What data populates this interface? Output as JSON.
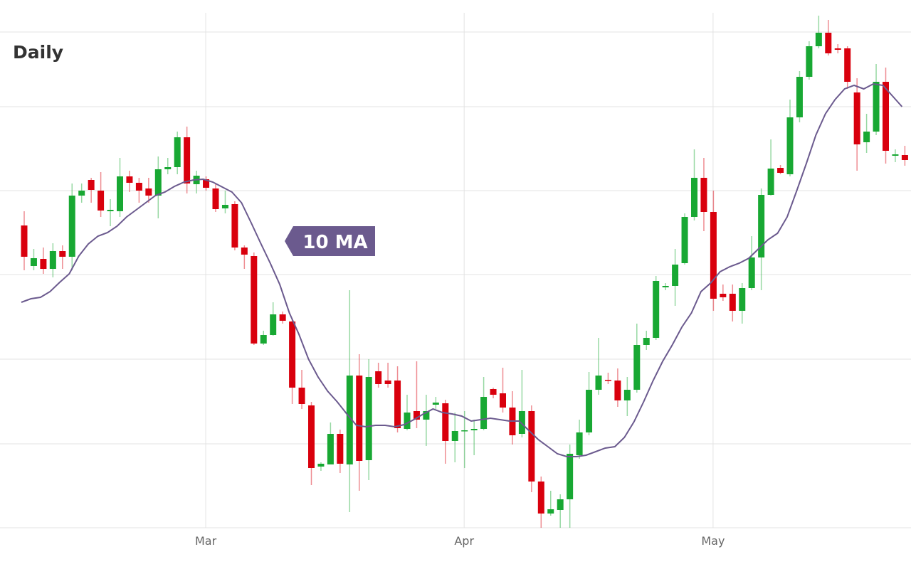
{
  "chart_data": {
    "type": "candlestick",
    "title": "Daily",
    "categories": [
      null,
      null,
      null,
      null,
      null,
      null,
      null,
      null,
      null,
      null,
      null,
      null,
      null,
      null,
      null,
      null,
      null,
      null,
      null,
      "Mar",
      null,
      null,
      null,
      null,
      null,
      null,
      null,
      null,
      null,
      null,
      null,
      null,
      null,
      null,
      null,
      null,
      null,
      null,
      null,
      null,
      null,
      null,
      null,
      null,
      null,
      null,
      "Apr",
      null,
      null,
      null,
      null,
      null,
      null,
      null,
      null,
      null,
      null,
      null,
      null,
      null,
      null,
      null,
      null,
      null,
      null,
      null,
      null,
      null,
      null,
      null,
      null,
      null,
      "May",
      null,
      null,
      null,
      null,
      null,
      null,
      null,
      null,
      null,
      null,
      null,
      null,
      null,
      null,
      null,
      null,
      null,
      null,
      null,
      null
    ],
    "open": [
      425,
      368,
      378,
      364,
      389,
      381,
      467,
      489,
      474,
      445,
      445,
      494,
      485,
      477,
      467,
      504,
      507,
      549,
      483,
      490,
      477,
      449,
      455,
      394,
      382,
      259,
      271,
      300,
      290,
      197,
      172,
      86,
      89,
      132,
      89,
      214,
      95,
      220,
      207,
      207,
      139,
      164,
      152,
      173,
      175,
      122,
      136,
      137,
      139,
      195,
      189,
      169,
      132,
      164,
      65,
      20,
      25,
      40,
      102,
      134,
      194,
      208,
      207,
      179,
      194,
      257,
      267,
      338,
      340,
      372,
      437,
      492,
      444,
      329,
      329,
      305,
      337,
      380,
      468,
      506,
      497,
      577,
      634,
      677,
      696,
      674,
      674,
      612,
      542,
      557,
      627,
      523,
      524
    ],
    "high": [
      445,
      392,
      394,
      400,
      397,
      484,
      484,
      492,
      500,
      462,
      520,
      502,
      492,
      492,
      522,
      520,
      557,
      564,
      502,
      494,
      484,
      474,
      459,
      397,
      387,
      277,
      317,
      304,
      294,
      222,
      177,
      92,
      148,
      138,
      334,
      244,
      237,
      232,
      232,
      227,
      187,
      234,
      187,
      184,
      180,
      162,
      164,
      152,
      212,
      197,
      225,
      192,
      222,
      172,
      72,
      52,
      47,
      117,
      152,
      219,
      267,
      218,
      224,
      212,
      287,
      277,
      354,
      344,
      392,
      442,
      532,
      520,
      474,
      342,
      342,
      344,
      410,
      477,
      546,
      510,
      602,
      642,
      684,
      720,
      714,
      680,
      677,
      632,
      582,
      652,
      647,
      532,
      537
    ],
    "low": [
      362,
      362,
      357,
      352,
      364,
      362,
      457,
      457,
      437,
      424,
      437,
      472,
      457,
      457,
      435,
      497,
      497,
      470,
      470,
      474,
      444,
      442,
      390,
      364,
      257,
      257,
      270,
      287,
      174,
      167,
      60,
      80,
      89,
      77,
      22,
      52,
      67,
      197,
      197,
      134,
      137,
      140,
      115,
      167,
      90,
      92,
      84,
      102,
      137,
      182,
      162,
      117,
      127,
      50,
      0,
      17,
      0,
      0,
      97,
      130,
      187,
      202,
      170,
      157,
      190,
      250,
      264,
      334,
      312,
      370,
      432,
      417,
      305,
      319,
      290,
      287,
      334,
      334,
      467,
      497,
      494,
      570,
      630,
      674,
      664,
      667,
      617,
      502,
      527,
      552,
      512,
      514,
      509
    ],
    "close": [
      381,
      379,
      364,
      389,
      381,
      467,
      474,
      475,
      446,
      447,
      494,
      485,
      474,
      467,
      504,
      507,
      549,
      484,
      495,
      478,
      448,
      454,
      394,
      384,
      259,
      271,
      300,
      291,
      197,
      174,
      84,
      90,
      132,
      90,
      214,
      94,
      212,
      202,
      202,
      140,
      162,
      152,
      164,
      176,
      122,
      136,
      137,
      139,
      184,
      187,
      169,
      130,
      164,
      65,
      20,
      26,
      40,
      104,
      134,
      194,
      214,
      207,
      179,
      194,
      257,
      267,
      347,
      340,
      370,
      437,
      492,
      444,
      322,
      324,
      305,
      337,
      380,
      468,
      505,
      499,
      577,
      634,
      677,
      696,
      667,
      672,
      627,
      539,
      557,
      627,
      530,
      525,
      517
    ],
    "up_color": "#18a833",
    "down_color": "#d9000d",
    "ma": {
      "name": "10 MA",
      "color": "#6b5a8e",
      "values": [
        317,
        322,
        324,
        332,
        345,
        357,
        382,
        399,
        410,
        415,
        424,
        437,
        447,
        457,
        467,
        472,
        480,
        486,
        489,
        490,
        486,
        479,
        472,
        457,
        429,
        400,
        372,
        342,
        302,
        272,
        237,
        212,
        192,
        177,
        160,
        144,
        142,
        144,
        144,
        142,
        145,
        152,
        160,
        167,
        162,
        160,
        157,
        150,
        152,
        154,
        152,
        150,
        150,
        137,
        124,
        114,
        104,
        100,
        100,
        102,
        107,
        112,
        114,
        127,
        149,
        177,
        207,
        234,
        257,
        282,
        302,
        332,
        344,
        360,
        367,
        372,
        379,
        392,
        405,
        414,
        437,
        474,
        512,
        552,
        582,
        602,
        617,
        622,
        617,
        624,
        622,
        607,
        592
      ]
    },
    "ylim": [
      0,
      724
    ],
    "yticks": [
      0,
      118,
      237,
      356,
      474,
      592
    ],
    "grid": true
  }
}
